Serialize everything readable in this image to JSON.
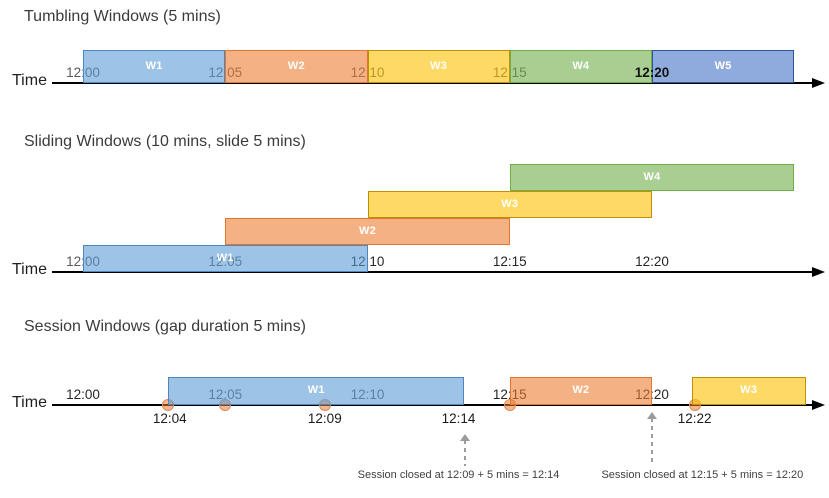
{
  "diagram": {
    "background": "#ffffff",
    "palette": {
      "axis_color": "#000000",
      "bar_label_color": "#ffffff",
      "tick_gray": "#595959",
      "tick_dark": "#262626",
      "title_color": "#3b3b3b",
      "annotation_color": "#3f3f3f",
      "closure_arrow_gray": "#9b9b9b",
      "dot_fill": "rgba(237,125,49,0.55)",
      "dot_border": "#e08a57",
      "blue": {
        "fill": "rgba(91,155,213,0.6)",
        "border": "#4e86c0"
      },
      "orange": {
        "fill": "rgba(237,125,49,0.6)",
        "border": "#e2762f"
      },
      "yellow": {
        "fill": "rgba(255,192,0,0.6)",
        "border": "#bf9000"
      },
      "green": {
        "fill": "rgba(112,173,71,0.6)",
        "border": "#70ad47"
      },
      "indigo": {
        "fill": "rgba(68,114,196,0.6)",
        "border": "#2f5597"
      }
    },
    "sections": [
      {
        "id": "tumbling",
        "title": "Tumbling Windows (5 mins)",
        "time_label": "Time",
        "ticks": [
          {
            "label": "12:00",
            "min": 0,
            "tone": "gray"
          },
          {
            "label": "12:05",
            "min": 5,
            "tone": "gray"
          },
          {
            "label": "12:10",
            "min": 10,
            "tone": "gray"
          },
          {
            "label": "12:15",
            "min": 15,
            "tone": "gray"
          },
          {
            "label": "12:20",
            "min": 20,
            "tone": "black"
          }
        ],
        "windows": [
          {
            "label": "W1",
            "start": 0,
            "end": 5,
            "color": "blue",
            "row": 0
          },
          {
            "label": "W2",
            "start": 5,
            "end": 10,
            "color": "orange",
            "row": 0
          },
          {
            "label": "W3",
            "start": 10,
            "end": 15,
            "color": "yellow",
            "row": 0
          },
          {
            "label": "W4",
            "start": 15,
            "end": 20,
            "color": "green",
            "row": 0
          },
          {
            "label": "W5",
            "start": 20,
            "end": 25,
            "color": "indigo",
            "row": 0
          }
        ]
      },
      {
        "id": "sliding",
        "title": "Sliding Windows (10 mins, slide 5 mins)",
        "time_label": "Time",
        "ticks": [
          {
            "label": "12:00",
            "min": 0,
            "tone": "gray"
          },
          {
            "label": "12:05",
            "min": 5,
            "tone": "gray"
          },
          {
            "label": "12:10",
            "min": 10,
            "tone": "dark"
          },
          {
            "label": "12:15",
            "min": 15,
            "tone": "dark"
          },
          {
            "label": "12:20",
            "min": 20,
            "tone": "dark"
          }
        ],
        "windows": [
          {
            "label": "W1",
            "start": 0,
            "end": 10,
            "color": "blue",
            "row": 0
          },
          {
            "label": "W2",
            "start": 5,
            "end": 15,
            "color": "orange",
            "row": 1
          },
          {
            "label": "W3",
            "start": 10,
            "end": 20,
            "color": "yellow",
            "row": 2
          },
          {
            "label": "W4",
            "start": 15,
            "end": 25,
            "color": "green",
            "row": 3
          }
        ]
      },
      {
        "id": "session",
        "title": "Session Windows (gap duration 5 mins)",
        "time_label": "Time",
        "ticks": [
          {
            "label": "12:00",
            "min": 0,
            "tone": "dark"
          },
          {
            "label": "12:05",
            "min": 5,
            "tone": "gray"
          },
          {
            "label": "12:10",
            "min": 10,
            "tone": "gray"
          },
          {
            "label": "12:15",
            "min": 15,
            "tone": "dark"
          },
          {
            "label": "12:20",
            "min": 20,
            "tone": "dark"
          }
        ],
        "windows": [
          {
            "label": "W1",
            "start": 3.0,
            "end": 13.4,
            "color": "blue",
            "row": 0
          },
          {
            "label": "W2",
            "start": 15.0,
            "end": 20.0,
            "color": "orange",
            "row": 0
          },
          {
            "label": "W3",
            "start": 21.4,
            "end": 25.4,
            "color": "yellow",
            "row": 0
          }
        ],
        "events": [
          {
            "min": 3.0
          },
          {
            "min": 5.0
          },
          {
            "min": 8.5
          },
          {
            "min": 15.0
          },
          {
            "min": 21.5
          }
        ],
        "event_labels": [
          {
            "text": "12:04",
            "min": 3.05
          },
          {
            "text": "12:09",
            "min": 8.5
          },
          {
            "text": "12:14",
            "min": 13.2
          },
          {
            "text": "12:22",
            "min": 21.5
          }
        ],
        "closure_arrows": [
          {
            "min": 13.44
          },
          {
            "min": 20.0
          }
        ],
        "annotations": [
          {
            "text": "Session closed at 12:09 + 5 mins = 12:14",
            "min": 13.2
          },
          {
            "text": "Session closed at 12:15 + 5 mins = 12:20",
            "min": 21.77
          }
        ]
      }
    ]
  }
}
